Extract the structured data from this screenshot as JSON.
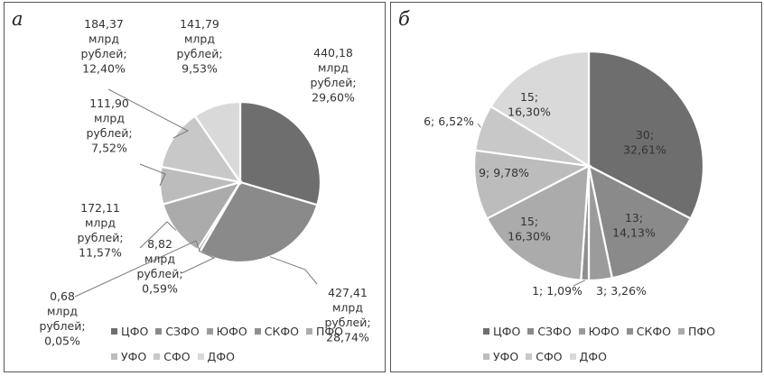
{
  "chart_data": [
    {
      "type": "pie",
      "panel_label": "а",
      "categories": [
        "ЦФО",
        "СЗФО",
        "ЮФО",
        "СКФО",
        "ПФО",
        "УФО",
        "СФО",
        "ДФО"
      ],
      "values": [
        440.18,
        427.41,
        0.68,
        8.82,
        172.11,
        111.9,
        184.37,
        141.79
      ],
      "percents": [
        29.6,
        28.74,
        0.05,
        0.59,
        11.57,
        7.52,
        12.4,
        9.53
      ],
      "colors": [
        "#6e6e6e",
        "#8a8a8a",
        "#9b9b9b",
        "#8f8f8f",
        "#ababab",
        "#bcbcbc",
        "#c8c8c8",
        "#d9d9d9"
      ],
      "slice_labels": [
        [
          "440,18",
          "млрд",
          "рублей;",
          "29,60%"
        ],
        [
          "427,41",
          "млрд",
          "рублей;",
          "28,74%"
        ],
        [
          "0,68",
          "млрд",
          "рублей;",
          "0,05%"
        ],
        [
          "8,82",
          "млрд",
          "рублей;",
          "0,59%"
        ],
        [
          "172,11",
          "млрд",
          "рублей;",
          "11,57%"
        ],
        [
          "111,90",
          "млрд",
          "рублей;",
          "7,52%"
        ],
        [
          "184,37",
          "млрд",
          "рублей;",
          "12,40%"
        ],
        [
          "141,79",
          "млрд",
          "рублей;",
          "9,53%"
        ]
      ],
      "legend": [
        "ЦФО",
        "СЗФО",
        "ЮФО",
        "СКФО",
        "ПФО",
        "УФО",
        "СФО",
        "ДФО"
      ],
      "legend_position": "bottom-right"
    },
    {
      "type": "pie",
      "panel_label": "б",
      "categories": [
        "ЦФО",
        "СЗФО",
        "ЮФО",
        "СКФО",
        "ПФО",
        "УФО",
        "СФО",
        "ДФО"
      ],
      "values": [
        30,
        13,
        3,
        1,
        15,
        9,
        6,
        15
      ],
      "percents": [
        32.61,
        14.13,
        3.26,
        1.09,
        16.3,
        9.78,
        6.52,
        16.3
      ],
      "colors": [
        "#6e6e6e",
        "#8a8a8a",
        "#9b9b9b",
        "#8f8f8f",
        "#ababab",
        "#bcbcbc",
        "#c8c8c8",
        "#d9d9d9"
      ],
      "slice_labels": [
        [
          "30;",
          "32,61%"
        ],
        [
          "13;",
          "14,13%"
        ],
        [
          "3; 3,26%"
        ],
        [
          "1; 1,09%"
        ],
        [
          "15;",
          "16,30%"
        ],
        [
          "9; 9,78%"
        ],
        [
          "6; 6,52%"
        ],
        [
          "15;",
          "16,30%"
        ]
      ],
      "legend": [
        "ЦФО",
        "СЗФО",
        "ЮФО",
        "СКФО",
        "ПФО",
        "УФО",
        "СФО",
        "ДФО"
      ],
      "legend_position": "bottom"
    }
  ]
}
